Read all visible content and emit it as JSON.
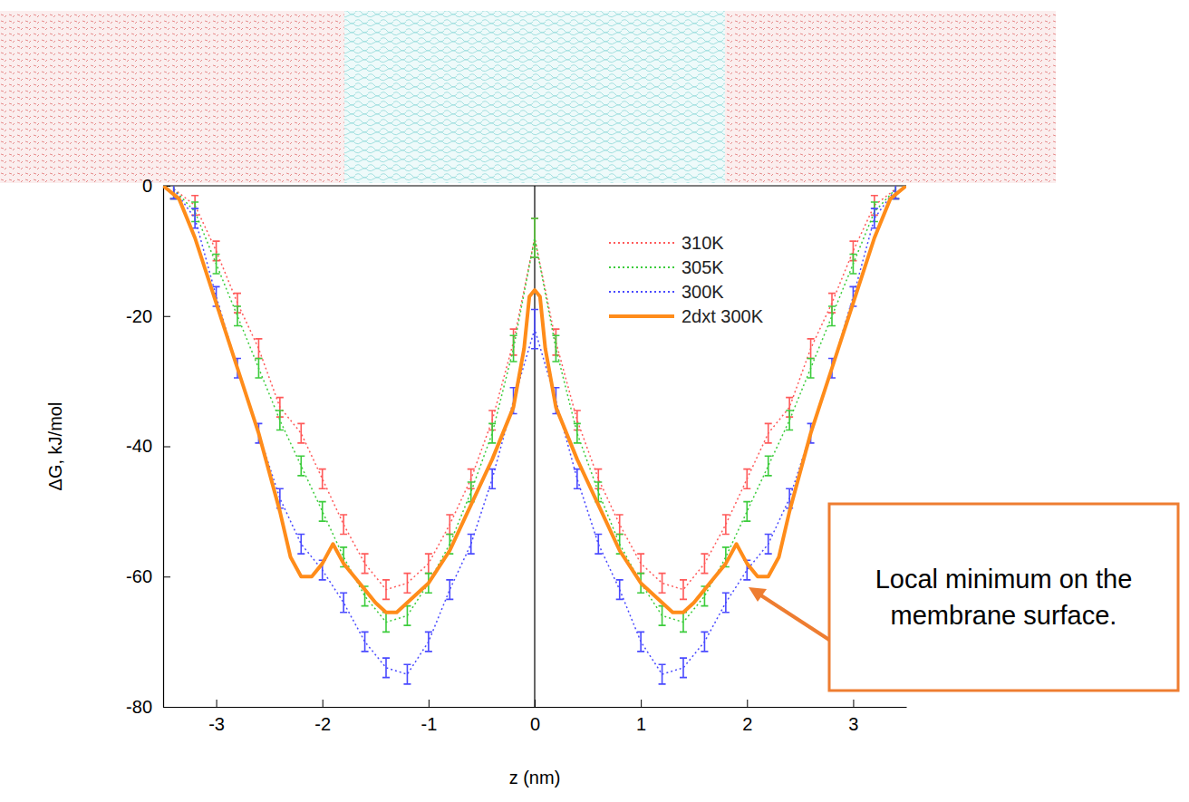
{
  "chart_data": {
    "type": "line",
    "x_label": "z (nm)",
    "y_label": "ΔG, kJ/mol",
    "xlim": [
      -3.5,
      3.5
    ],
    "ylim": [
      -80,
      0
    ],
    "xticks": [
      -3,
      -2,
      -1,
      0,
      1,
      2,
      3
    ],
    "yticks": [
      -80,
      -60,
      -40,
      -20,
      0
    ],
    "grid": false,
    "legend": "upper-right",
    "annotation": {
      "text": "Local minimum on the membrane surface."
    },
    "series": [
      {
        "name": "310K",
        "color": "#ff5a5a",
        "line_style": "dotted",
        "marker": "errorbar",
        "x": [
          -3.4,
          -3.2,
          -3.0,
          -2.8,
          -2.6,
          -2.4,
          -2.2,
          -2.0,
          -1.8,
          -1.6,
          -1.4,
          -1.2,
          -1.0,
          -0.8,
          -0.6,
          -0.4,
          -0.2,
          0,
          0.2,
          0.4,
          0.6,
          0.8,
          1.0,
          1.2,
          1.4,
          1.6,
          1.8,
          2.0,
          2.2,
          2.4,
          2.6,
          2.8,
          3.0,
          3.2,
          3.4
        ],
        "values": [
          -0.5,
          -3,
          -10,
          -18,
          -25,
          -34,
          -38,
          -45,
          -52,
          -58,
          -62,
          -61,
          -58,
          -52,
          -45,
          -36,
          -24,
          -8,
          -24,
          -36,
          -45,
          -52,
          -58,
          -61,
          -62,
          -58,
          -52,
          -45,
          -38,
          -34,
          -25,
          -18,
          -10,
          -3,
          -0.5
        ],
        "errors": [
          1.5,
          1.5,
          1.5,
          1.5,
          1.5,
          1.5,
          1.5,
          1.5,
          1.5,
          1.5,
          1.5,
          1.5,
          1.5,
          1.5,
          1.5,
          1.5,
          2,
          3,
          2,
          1.5,
          1.5,
          1.5,
          1.5,
          1.5,
          1.5,
          1.5,
          1.5,
          1.5,
          1.5,
          1.5,
          1.5,
          1.5,
          1.5,
          1.5,
          1.5
        ]
      },
      {
        "name": "305K",
        "color": "#3ccc3c",
        "line_style": "dotted",
        "marker": "errorbar",
        "x": [
          -3.4,
          -3.2,
          -3.0,
          -2.8,
          -2.6,
          -2.4,
          -2.2,
          -2.0,
          -1.8,
          -1.6,
          -1.4,
          -1.2,
          -1.0,
          -0.8,
          -0.6,
          -0.4,
          -0.2,
          0,
          0.2,
          0.4,
          0.6,
          0.8,
          1.0,
          1.2,
          1.4,
          1.6,
          1.8,
          2.0,
          2.2,
          2.4,
          2.6,
          2.8,
          3.0,
          3.2,
          3.4
        ],
        "values": [
          -0.5,
          -4,
          -12,
          -20,
          -28,
          -36,
          -43,
          -50,
          -57,
          -63,
          -67,
          -66,
          -61,
          -55,
          -47,
          -38,
          -25,
          -8,
          -25,
          -38,
          -47,
          -55,
          -61,
          -66,
          -67,
          -63,
          -57,
          -50,
          -43,
          -36,
          -28,
          -20,
          -12,
          -4,
          -0.5
        ],
        "errors": [
          1.5,
          1.5,
          1.5,
          1.5,
          1.5,
          1.5,
          1.5,
          1.5,
          1.5,
          1.5,
          1.5,
          1.5,
          1.5,
          1.5,
          1.5,
          1.5,
          2,
          3,
          2,
          1.5,
          1.5,
          1.5,
          1.5,
          1.5,
          1.5,
          1.5,
          1.5,
          1.5,
          1.5,
          1.5,
          1.5,
          1.5,
          1.5,
          1.5,
          1.5
        ]
      },
      {
        "name": "300K",
        "color": "#4a4aff",
        "line_style": "dotted",
        "marker": "errorbar",
        "x": [
          -3.4,
          -3.2,
          -3.0,
          -2.8,
          -2.6,
          -2.4,
          -2.2,
          -2.0,
          -1.8,
          -1.6,
          -1.4,
          -1.2,
          -1.0,
          -0.8,
          -0.6,
          -0.4,
          -0.2,
          0,
          0.2,
          0.4,
          0.6,
          0.8,
          1.0,
          1.2,
          1.4,
          1.6,
          1.8,
          2.0,
          2.2,
          2.4,
          2.6,
          2.8,
          3.0,
          3.2,
          3.4
        ],
        "values": [
          -0.5,
          -5,
          -17,
          -28,
          -38,
          -48,
          -55,
          -59,
          -64,
          -70,
          -74,
          -75,
          -70,
          -62,
          -55,
          -45,
          -33,
          -22,
          -33,
          -45,
          -55,
          -62,
          -70,
          -75,
          -74,
          -70,
          -64,
          -59,
          -55,
          -48,
          -38,
          -28,
          -17,
          -5,
          -0.5
        ],
        "errors": [
          1.5,
          1.5,
          1.5,
          1.5,
          1.5,
          1.5,
          1.5,
          1.5,
          1.5,
          1.5,
          1.5,
          1.5,
          1.5,
          1.5,
          1.5,
          1.5,
          2,
          3,
          2,
          1.5,
          1.5,
          1.5,
          1.5,
          1.5,
          1.5,
          1.5,
          1.5,
          1.5,
          1.5,
          1.5,
          1.5,
          1.5,
          1.5,
          1.5,
          1.5
        ]
      },
      {
        "name": "2dxt 300K",
        "color": "#ff8c1a",
        "line_style": "solid",
        "marker": "none",
        "x": [
          -3.5,
          -3.35,
          -3.2,
          -3.0,
          -2.8,
          -2.6,
          -2.4,
          -2.3,
          -2.2,
          -2.1,
          -2.0,
          -1.9,
          -1.8,
          -1.7,
          -1.6,
          -1.5,
          -1.4,
          -1.3,
          -1.2,
          -1.0,
          -0.8,
          -0.6,
          -0.4,
          -0.2,
          -0.1,
          -0.05,
          0,
          0.05,
          0.1,
          0.2,
          0.4,
          0.6,
          0.8,
          1.0,
          1.2,
          1.3,
          1.4,
          1.5,
          1.6,
          1.7,
          1.8,
          1.9,
          2.0,
          2.1,
          2.2,
          2.3,
          2.4,
          2.6,
          2.8,
          3.0,
          3.2,
          3.35,
          3.5
        ],
        "values": [
          0,
          -2,
          -8,
          -18,
          -28,
          -38,
          -50,
          -57,
          -60,
          -60,
          -58,
          -55,
          -58,
          -60,
          -62,
          -64,
          -65.5,
          -65.5,
          -64,
          -61,
          -56,
          -49,
          -42,
          -34,
          -25,
          -17,
          -16,
          -17,
          -25,
          -34,
          -42,
          -49,
          -56,
          -61,
          -64,
          -65.5,
          -65.5,
          -64,
          -62,
          -60,
          -58,
          -55,
          -58,
          -60,
          -60,
          -57,
          -50,
          -38,
          -28,
          -18,
          -8,
          -2,
          0
        ]
      }
    ]
  }
}
